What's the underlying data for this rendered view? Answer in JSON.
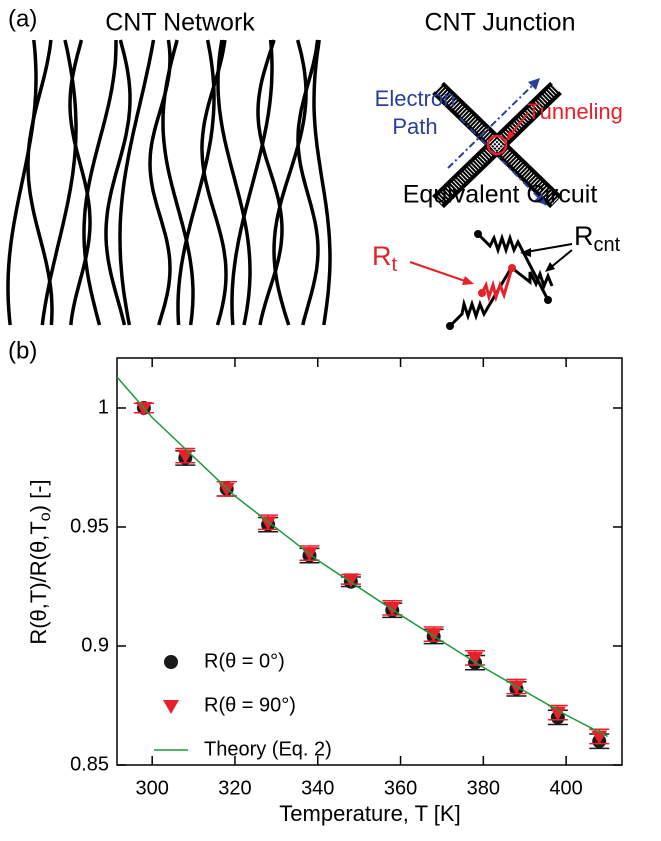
{
  "panel_a": {
    "label": "(a)",
    "network_title": "CNT Network",
    "junction_title": "CNT Junction",
    "electron_path": [
      "Electron",
      "Path"
    ],
    "tunneling": "Tunneling",
    "circuit_title": "Equivalent Circuit",
    "r_t": [
      "R",
      "t"
    ],
    "r_cnt": [
      "R",
      "cnt"
    ]
  },
  "chart_data": {
    "type": "scatter",
    "panel_label": "(b)",
    "xlabel": "Temperature, T [K]",
    "ylabel": [
      "R(θ,T)/R(θ,T",
      "o",
      ") [-]"
    ],
    "xlim": [
      291.5,
      413.5
    ],
    "ylim": [
      0.85,
      1.021
    ],
    "xticks": [
      300,
      320,
      340,
      360,
      380,
      400
    ],
    "yticks": [
      0.85,
      0.9,
      0.95,
      1
    ],
    "x": [
      298,
      308,
      318,
      328,
      338,
      348,
      358,
      368,
      378,
      388,
      398,
      408
    ],
    "series": [
      {
        "name": "R(θ = 0°)",
        "color": "#1a1a1a",
        "marker": "circle",
        "values": [
          1.0,
          0.979,
          0.966,
          0.951,
          0.938,
          0.927,
          0.915,
          0.904,
          0.893,
          0.882,
          0.87,
          0.86
        ],
        "errors": [
          0.002,
          0.003,
          0.003,
          0.003,
          0.003,
          0.002,
          0.003,
          0.003,
          0.003,
          0.003,
          0.003,
          0.003
        ]
      },
      {
        "name": "R(θ = 90°)",
        "color": "#e8202a",
        "marker": "triangle",
        "values": [
          1.0,
          0.98,
          0.966,
          0.952,
          0.939,
          0.928,
          0.916,
          0.905,
          0.895,
          0.883,
          0.872,
          0.862
        ],
        "errors": [
          0.002,
          0.003,
          0.003,
          0.003,
          0.003,
          0.002,
          0.003,
          0.003,
          0.003,
          0.003,
          0.003,
          0.003
        ]
      },
      {
        "name": "Theory (Eq. 2)",
        "color": "#1a9a3a",
        "type": "line",
        "x": [
          291.5,
          300,
          320,
          340,
          360,
          380,
          400,
          410
        ],
        "values": [
          1.013,
          0.996,
          0.963,
          0.936,
          0.913,
          0.891,
          0.871,
          0.862
        ]
      }
    ]
  }
}
